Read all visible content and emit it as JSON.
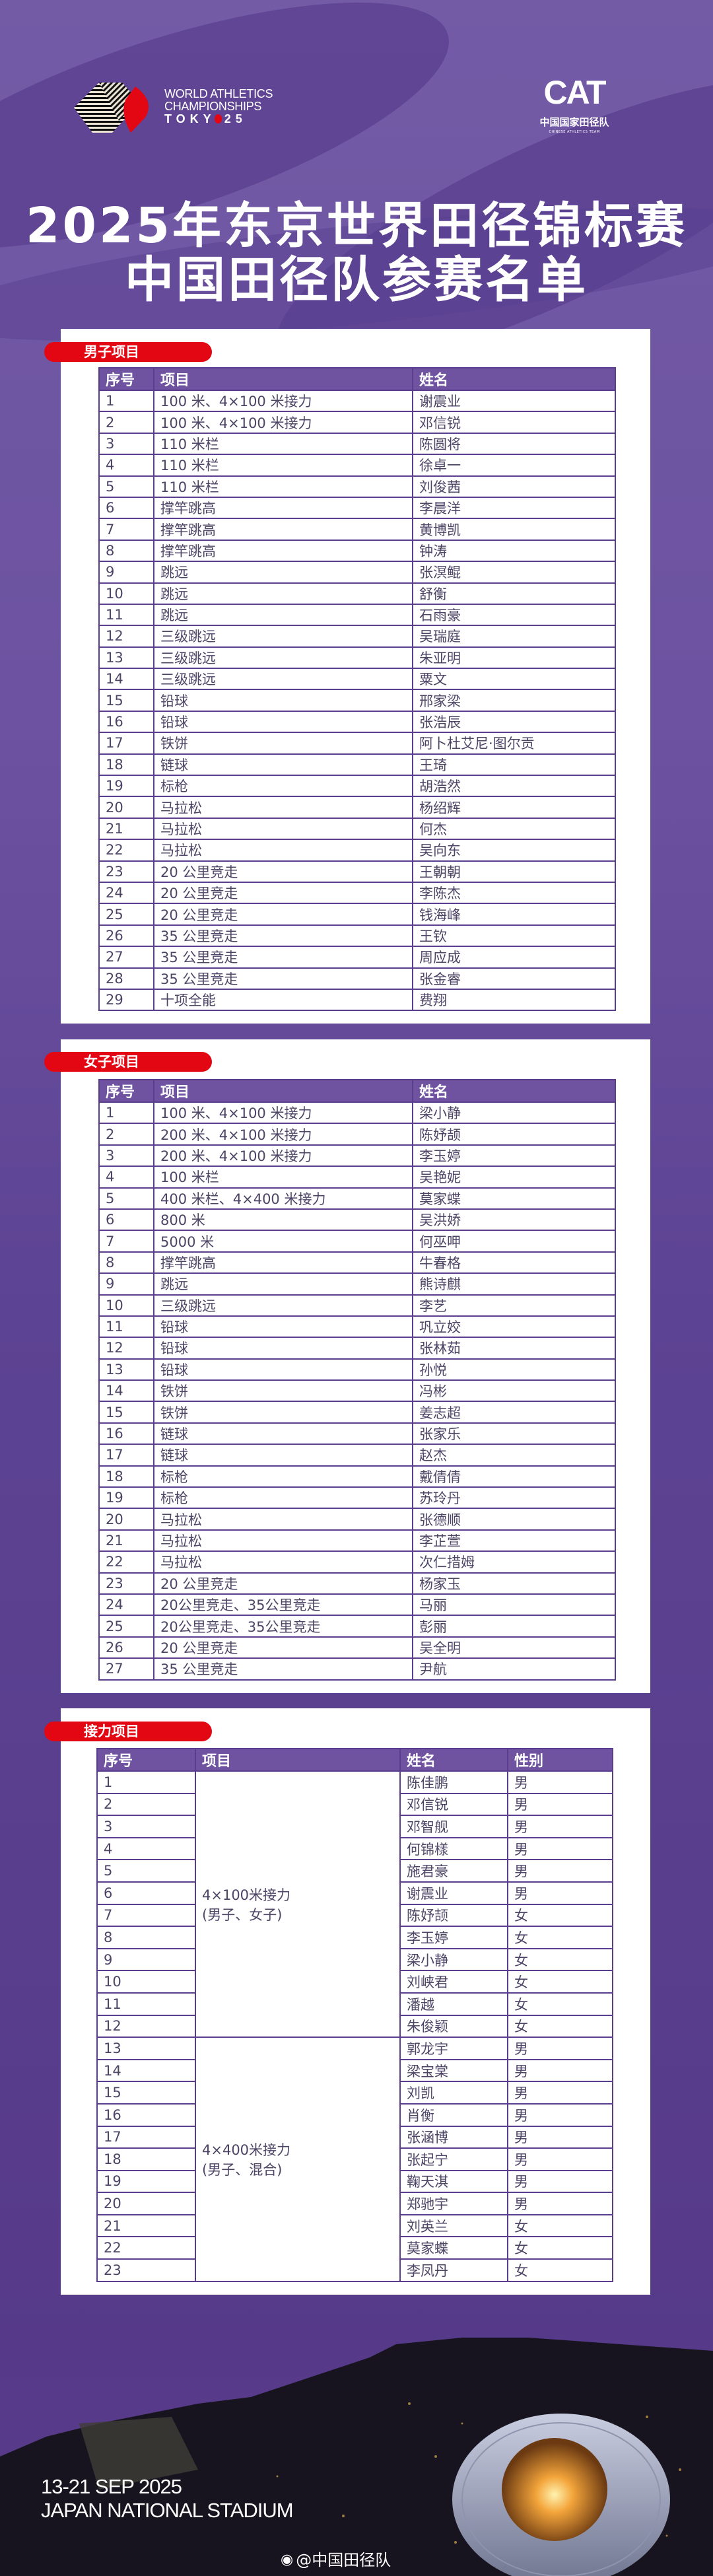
{
  "header": {
    "wa_logo": {
      "line1": "WORLD ATHLETICS",
      "line2": "CHAMPIONSHIPS",
      "line3": "TOKY",
      "line3_end": "25"
    },
    "cat_logo": {
      "mark": "CAT",
      "cn": "中国国家田径队",
      "en": "CHINESE ATHLETICS TEAM"
    },
    "title_line1": "2025年东京世界田径锦标赛",
    "title_line2": "中国田径队参赛名单"
  },
  "colors": {
    "accent_red": "#e30613",
    "purple": "#6c52a0",
    "table_header": "#7053a0",
    "border": "#5b3d8e"
  },
  "men": {
    "section_label": "男子项目",
    "headers": [
      "序号",
      "项目",
      "姓名"
    ],
    "rows": [
      [
        "1",
        "100 米、4×100 米接力",
        "谢震业"
      ],
      [
        "2",
        "100 米、4×100 米接力",
        "邓信锐"
      ],
      [
        "3",
        "110 米栏",
        "陈圆将"
      ],
      [
        "4",
        "110 米栏",
        "徐卓一"
      ],
      [
        "5",
        "110 米栏",
        "刘俊茜"
      ],
      [
        "6",
        "撑竿跳高",
        "李晨洋"
      ],
      [
        "7",
        "撑竿跳高",
        "黄博凯"
      ],
      [
        "8",
        "撑竿跳高",
        "钟涛"
      ],
      [
        "9",
        "跳远",
        "张溟鲲"
      ],
      [
        "10",
        "跳远",
        "舒衡"
      ],
      [
        "11",
        "跳远",
        "石雨豪"
      ],
      [
        "12",
        "三级跳远",
        "吴瑞庭"
      ],
      [
        "13",
        "三级跳远",
        "朱亚明"
      ],
      [
        "14",
        "三级跳远",
        "粟文"
      ],
      [
        "15",
        "铅球",
        "邢家梁"
      ],
      [
        "16",
        "铅球",
        "张浩辰"
      ],
      [
        "17",
        "铁饼",
        "阿卜杜艾尼·图尔贡"
      ],
      [
        "18",
        "链球",
        "王琦"
      ],
      [
        "19",
        "标枪",
        "胡浩然"
      ],
      [
        "20",
        "马拉松",
        "杨绍辉"
      ],
      [
        "21",
        "马拉松",
        "何杰"
      ],
      [
        "22",
        "马拉松",
        "吴向东"
      ],
      [
        "23",
        "20 公里竞走",
        "王朝朝"
      ],
      [
        "24",
        "20 公里竞走",
        "李陈杰"
      ],
      [
        "25",
        "20 公里竞走",
        "钱海峰"
      ],
      [
        "26",
        "35 公里竞走",
        "王钦"
      ],
      [
        "27",
        "35 公里竞走",
        "周应成"
      ],
      [
        "28",
        "35 公里竞走",
        "张金睿"
      ],
      [
        "29",
        "十项全能",
        "费翔"
      ]
    ]
  },
  "women": {
    "section_label": "女子项目",
    "headers": [
      "序号",
      "项目",
      "姓名"
    ],
    "rows": [
      [
        "1",
        "100 米、4×100 米接力",
        "梁小静"
      ],
      [
        "2",
        "200 米、4×100 米接力",
        "陈妤颉"
      ],
      [
        "3",
        "200 米、4×100 米接力",
        "李玉婷"
      ],
      [
        "4",
        "100 米栏",
        "吴艳妮"
      ],
      [
        "5",
        "400 米栏、4×400 米接力",
        "莫家蝶"
      ],
      [
        "6",
        "800 米",
        "吴洪娇"
      ],
      [
        "7",
        "5000 米",
        "何巫呷"
      ],
      [
        "8",
        "撑竿跳高",
        "牛春格"
      ],
      [
        "9",
        "跳远",
        "熊诗麒"
      ],
      [
        "10",
        "三级跳远",
        "李艺"
      ],
      [
        "11",
        "铅球",
        "巩立姣"
      ],
      [
        "12",
        "铅球",
        "张林茹"
      ],
      [
        "13",
        "铅球",
        "孙悦"
      ],
      [
        "14",
        "铁饼",
        "冯彬"
      ],
      [
        "15",
        "铁饼",
        "姜志超"
      ],
      [
        "16",
        "链球",
        "张家乐"
      ],
      [
        "17",
        "链球",
        "赵杰"
      ],
      [
        "18",
        "标枪",
        "戴倩倩"
      ],
      [
        "19",
        "标枪",
        "苏玲丹"
      ],
      [
        "20",
        "马拉松",
        "张德顺"
      ],
      [
        "21",
        "马拉松",
        "李芷萱"
      ],
      [
        "22",
        "马拉松",
        "次仁措姆"
      ],
      [
        "23",
        "20 公里竞走",
        "杨家玉"
      ],
      [
        "24",
        "20公里竞走、35公里竞走",
        "马丽"
      ],
      [
        "25",
        "20公里竞走、35公里竞走",
        "彭丽"
      ],
      [
        "26",
        "20 公里竞走",
        "吴全明"
      ],
      [
        "27",
        "35 公里竞走",
        "尹航"
      ]
    ]
  },
  "relay": {
    "section_label": "接力项目",
    "headers": [
      "序号",
      "项目",
      "姓名",
      "性别"
    ],
    "groups": [
      {
        "event_line1": "4×100米接力",
        "event_line2": "(男子、女子)",
        "rows": [
          [
            "1",
            "陈佳鹏",
            "男"
          ],
          [
            "2",
            "邓信锐",
            "男"
          ],
          [
            "3",
            "邓智舰",
            "男"
          ],
          [
            "4",
            "何锦樣",
            "男"
          ],
          [
            "5",
            "施君豪",
            "男"
          ],
          [
            "6",
            "谢震业",
            "男"
          ],
          [
            "7",
            "陈妤颉",
            "女"
          ],
          [
            "8",
            "李玉婷",
            "女"
          ],
          [
            "9",
            "梁小静",
            "女"
          ],
          [
            "10",
            "刘峡君",
            "女"
          ],
          [
            "11",
            "潘越",
            "女"
          ],
          [
            "12",
            "朱俊颖",
            "女"
          ]
        ]
      },
      {
        "event_line1": "4×400米接力",
        "event_line2": "(男子、混合)",
        "rows": [
          [
            "13",
            "郭龙宇",
            "男"
          ],
          [
            "14",
            "梁宝棠",
            "男"
          ],
          [
            "15",
            "刘凯",
            "男"
          ],
          [
            "16",
            "肖衡",
            "男"
          ],
          [
            "17",
            "张涵博",
            "男"
          ],
          [
            "18",
            "张起宁",
            "男"
          ],
          [
            "19",
            "鞠天淇",
            "男"
          ],
          [
            "20",
            "郑驰宇",
            "男"
          ],
          [
            "21",
            "刘英兰",
            "女"
          ],
          [
            "22",
            "莫家蝶",
            "女"
          ],
          [
            "23",
            "李凤丹",
            "女"
          ]
        ]
      }
    ]
  },
  "footer": {
    "dates": "13-21 SEP 2025",
    "venue": "JAPAN NATIONAL STADIUM",
    "watermark": "@中国田径队"
  }
}
